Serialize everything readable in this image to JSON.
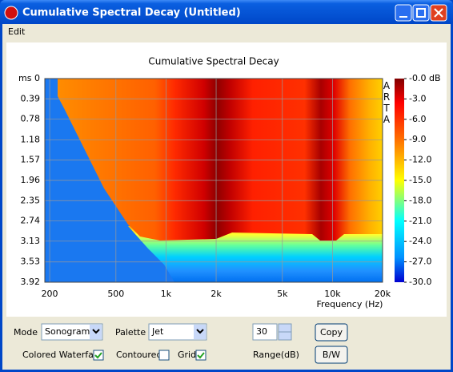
{
  "window": {
    "title": "Cumulative Spectral Decay  (Untitled)"
  },
  "menu": [
    "Edit"
  ],
  "chart_data": {
    "type": "sonogram",
    "title": "Cumulative Spectral Decay",
    "watermark": "ARTA",
    "xlabel": "Frequency (Hz)",
    "xscale": "log",
    "grid": true,
    "xlim": [
      187,
      20000
    ],
    "xticks": [
      200,
      500,
      {
        "value": 1000,
        "label": "1k"
      },
      {
        "value": 2000,
        "label": "2k"
      },
      {
        "value": 5000,
        "label": "5k"
      },
      {
        "value": 10000,
        "label": "10k"
      },
      {
        "value": 20000,
        "label": "20k"
      }
    ],
    "ylim": [
      0,
      3.92
    ],
    "yticks": [
      {
        "value": 0,
        "label": "ms 0"
      },
      0.39,
      0.78,
      1.18,
      1.57,
      1.96,
      2.35,
      2.74,
      3.13,
      3.53,
      3.92
    ],
    "clim": [
      0,
      -30
    ],
    "cticks": [
      {
        "value": 0,
        "label": "-0.0 dB"
      },
      {
        "value": -3,
        "label": "-3.0"
      },
      {
        "value": -6,
        "label": "-6.0"
      },
      {
        "value": -9,
        "label": "-9.0"
      },
      {
        "value": -12,
        "label": "-12.0"
      },
      {
        "value": -15,
        "label": "-15.0"
      },
      {
        "value": -18,
        "label": "-18.0"
      },
      {
        "value": -21,
        "label": "-21.0"
      },
      {
        "value": -24,
        "label": "-24.0"
      },
      {
        "value": -27,
        "label": "-27.0"
      },
      {
        "value": -30,
        "label": "-30.0"
      }
    ]
  },
  "controls": {
    "mode_label": "Mode",
    "mode_value": "Sonogram",
    "palette_label": "Palette",
    "palette_value": "Jet",
    "range_value": "30",
    "range_label": "Range(dB)",
    "copy": "Copy",
    "bw": "B/W",
    "colored_waterfall": {
      "label": "Colored Waterfall",
      "checked": true
    },
    "contoured": {
      "label": "Contoured",
      "checked": false
    },
    "grid": {
      "label": "Grid",
      "checked": true
    }
  }
}
